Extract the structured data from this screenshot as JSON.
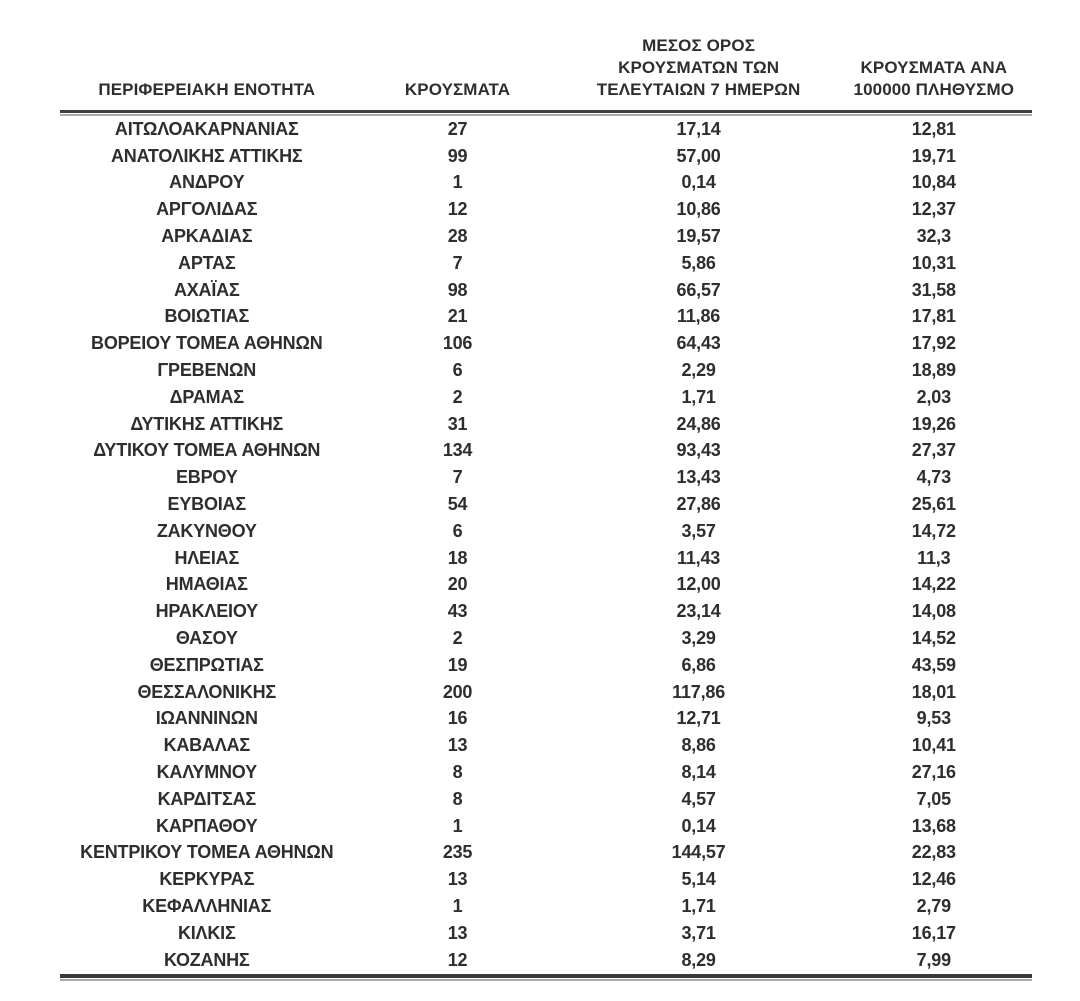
{
  "table": {
    "headers": [
      {
        "id": "regional_unit",
        "lines": [
          "ΠΕΡΙΦΕΡΕΙΑΚΗ ΕΝΟΤΗΤΑ"
        ]
      },
      {
        "id": "cases",
        "lines": [
          "ΚΡΟΥΣΜΑΤΑ"
        ]
      },
      {
        "id": "avg_cases_last_7_days",
        "lines": [
          "ΜΕΣΟΣ ΟΡΟΣ",
          "ΚΡΟΥΣΜΑΤΩΝ ΤΩΝ",
          "ΤΕΛΕΥΤΑΙΩΝ 7 ΗΜΕΡΩΝ"
        ]
      },
      {
        "id": "cases_per_100k",
        "lines": [
          "ΚΡΟΥΣΜΑΤΑ ΑΝΑ",
          "100000 ΠΛΗΘΥΣΜΟ"
        ]
      }
    ],
    "rows": [
      [
        "ΑΙΤΩΛΟΑΚΑΡΝΑΝΙΑΣ",
        "27",
        "17,14",
        "12,81"
      ],
      [
        "ΑΝΑΤΟΛΙΚΗΣ ΑΤΤΙΚΗΣ",
        "99",
        "57,00",
        "19,71"
      ],
      [
        "ΑΝΔΡΟΥ",
        "1",
        "0,14",
        "10,84"
      ],
      [
        "ΑΡΓΟΛΙΔΑΣ",
        "12",
        "10,86",
        "12,37"
      ],
      [
        "ΑΡΚΑΔΙΑΣ",
        "28",
        "19,57",
        "32,3"
      ],
      [
        "ΑΡΤΑΣ",
        "7",
        "5,86",
        "10,31"
      ],
      [
        "ΑΧΑΪΑΣ",
        "98",
        "66,57",
        "31,58"
      ],
      [
        "ΒΟΙΩΤΙΑΣ",
        "21",
        "11,86",
        "17,81"
      ],
      [
        "ΒΟΡΕΙΟΥ ΤΟΜΕΑ ΑΘΗΝΩΝ",
        "106",
        "64,43",
        "17,92"
      ],
      [
        "ΓΡΕΒΕΝΩΝ",
        "6",
        "2,29",
        "18,89"
      ],
      [
        "ΔΡΑΜΑΣ",
        "2",
        "1,71",
        "2,03"
      ],
      [
        "ΔΥΤΙΚΗΣ ΑΤΤΙΚΗΣ",
        "31",
        "24,86",
        "19,26"
      ],
      [
        "ΔΥΤΙΚΟΥ ΤΟΜΕΑ ΑΘΗΝΩΝ",
        "134",
        "93,43",
        "27,37"
      ],
      [
        "ΕΒΡΟΥ",
        "7",
        "13,43",
        "4,73"
      ],
      [
        "ΕΥΒΟΙΑΣ",
        "54",
        "27,86",
        "25,61"
      ],
      [
        "ΖΑΚΥΝΘΟΥ",
        "6",
        "3,57",
        "14,72"
      ],
      [
        "ΗΛΕΙΑΣ",
        "18",
        "11,43",
        "11,3"
      ],
      [
        "ΗΜΑΘΙΑΣ",
        "20",
        "12,00",
        "14,22"
      ],
      [
        "ΗΡΑΚΛΕΙΟΥ",
        "43",
        "23,14",
        "14,08"
      ],
      [
        "ΘΑΣΟΥ",
        "2",
        "3,29",
        "14,52"
      ],
      [
        "ΘΕΣΠΡΩΤΙΑΣ",
        "19",
        "6,86",
        "43,59"
      ],
      [
        "ΘΕΣΣΑΛΟΝΙΚΗΣ",
        "200",
        "117,86",
        "18,01"
      ],
      [
        "ΙΩΑΝΝΙΝΩΝ",
        "16",
        "12,71",
        "9,53"
      ],
      [
        "ΚΑΒΑΛΑΣ",
        "13",
        "8,86",
        "10,41"
      ],
      [
        "ΚΑΛΥΜΝΟΥ",
        "8",
        "8,14",
        "27,16"
      ],
      [
        "ΚΑΡΔΙΤΣΑΣ",
        "8",
        "4,57",
        "7,05"
      ],
      [
        "ΚΑΡΠΑΘΟΥ",
        "1",
        "0,14",
        "13,68"
      ],
      [
        "ΚΕΝΤΡΙΚΟΥ ΤΟΜΕΑ ΑΘΗΝΩΝ",
        "235",
        "144,57",
        "22,83"
      ],
      [
        "ΚΕΡΚΥΡΑΣ",
        "13",
        "5,14",
        "12,46"
      ],
      [
        "ΚΕΦΑΛΛΗΝΙΑΣ",
        "1",
        "1,71",
        "2,79"
      ],
      [
        "ΚΙΛΚΙΣ",
        "13",
        "3,71",
        "16,17"
      ],
      [
        "ΚΟΖΑΝΗΣ",
        "12",
        "8,29",
        "7,99"
      ]
    ],
    "colors": {
      "text": "#2e2e2e",
      "rule_dark": "#3e3e3e",
      "rule_light": "#a9a9a9",
      "background": "#ffffff"
    }
  }
}
